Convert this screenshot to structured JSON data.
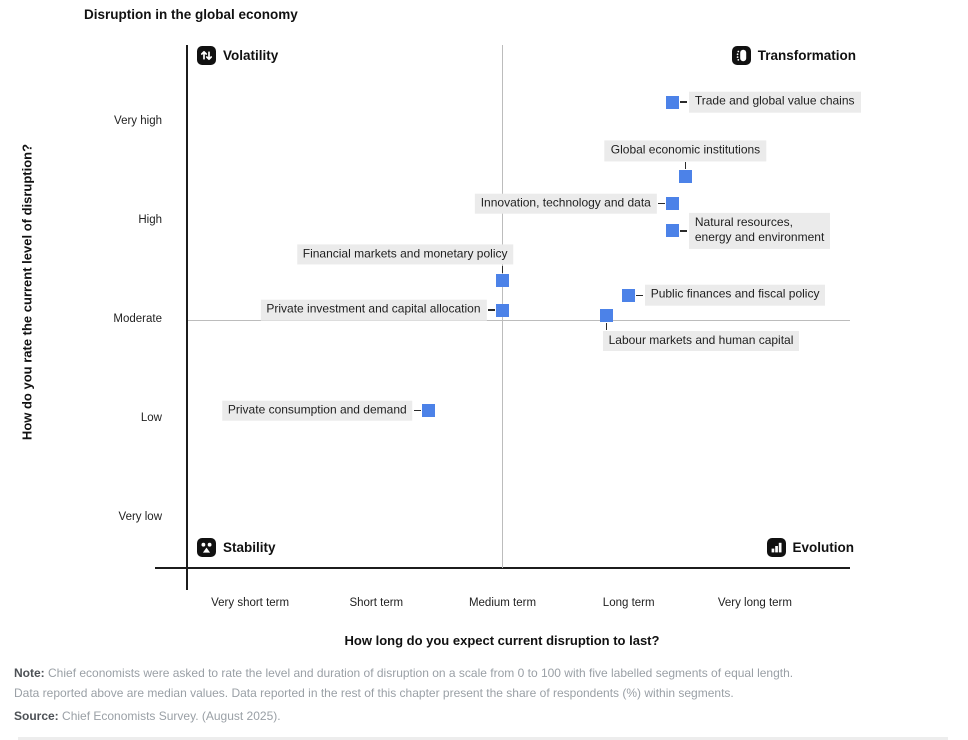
{
  "page": {
    "title": "Disruption in the global economy",
    "note_label": "Note:",
    "note_line1": "Chief economists were asked to rate the level and duration of disruption on a scale from 0 to 100 with five labelled segments of equal length.",
    "note_line2": "Data reported above are median values. Data reported in the rest of this chapter present the share of respondents (%) within segments.",
    "source_label": "Source:",
    "source_text": "Chief Economists Survey. (August 2025)."
  },
  "chart_data": {
    "type": "scatter",
    "title": "Disruption in the global economy",
    "xlabel": "How long do you expect current disruption to last?",
    "ylabel": "How do you rate the current level of disruption?",
    "xlim": [
      0,
      100
    ],
    "ylim": [
      0,
      100
    ],
    "grid": "center cross only",
    "marker_color": "#4C82E8",
    "marker_shape": "square",
    "x_ticks": [
      {
        "label": "Very short term",
        "value": 10
      },
      {
        "label": "Short term",
        "value": 30
      },
      {
        "label": "Medium term",
        "value": 50
      },
      {
        "label": "Long term",
        "value": 70
      },
      {
        "label": "Very long term",
        "value": 90
      }
    ],
    "y_ticks": [
      {
        "label": "Very high",
        "value": 90
      },
      {
        "label": "High",
        "value": 70
      },
      {
        "label": "Moderate",
        "value": 50
      },
      {
        "label": "Low",
        "value": 30
      },
      {
        "label": "Very low",
        "value": 10
      }
    ],
    "quadrants": [
      {
        "label": "Volatility",
        "icon": "up-down-arrows-icon",
        "corner": "top-left"
      },
      {
        "label": "Transformation",
        "icon": "chrysalis-icon",
        "corner": "top-right"
      },
      {
        "label": "Stability",
        "icon": "balance-icon",
        "corner": "bottom-left"
      },
      {
        "label": "Evolution",
        "icon": "bar-chart-icon",
        "corner": "bottom-right"
      }
    ],
    "points": [
      {
        "label": "Trade and global value chains",
        "x": 77,
        "y": 94,
        "side": "right"
      },
      {
        "label": "Global economic institutions",
        "x": 79,
        "y": 79,
        "side": "above",
        "align": "center"
      },
      {
        "label": "Innovation, technology and data",
        "x": 77,
        "y": 73.5,
        "side": "left"
      },
      {
        "label": "Natural resources,\nenergy and environment",
        "x": 77,
        "y": 68,
        "side": "right"
      },
      {
        "label": "Financial markets and monetary policy",
        "x": 50,
        "y": 58,
        "side": "above",
        "align": "end"
      },
      {
        "label": "Public finances and fiscal policy",
        "x": 70,
        "y": 55,
        "side": "right"
      },
      {
        "label": "Private investment and capital allocation",
        "x": 50,
        "y": 52,
        "side": "left"
      },
      {
        "label": "Labour markets and human capital",
        "x": 66.5,
        "y": 51,
        "side": "below",
        "align": "start"
      },
      {
        "label": "Private consumption and demand",
        "x": 38.3,
        "y": 31.7,
        "side": "left"
      }
    ]
  }
}
